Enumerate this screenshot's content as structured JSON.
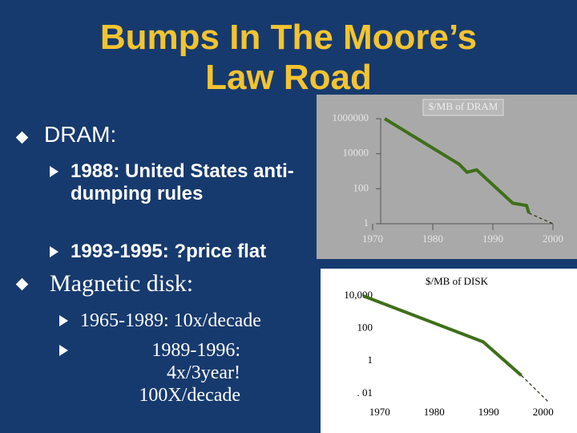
{
  "title": "Bumps In The Moore’s Law Road",
  "bullets": [
    {
      "text": "DRAM:",
      "items": [
        "1988: United States anti-dumping rules",
        "1993-1995: ?price flat"
      ]
    },
    {
      "text": "Magnetic disk:",
      "items": [
        "1965-1989: 10x/decade",
        "1989-1996: 4x/3year! 100X/decade"
      ]
    }
  ],
  "chart_data": [
    {
      "type": "line",
      "title": "$/MB of DRAM",
      "log_scale": true,
      "x": [
        1972,
        1984.4,
        1985.7,
        1987.3,
        1993.3,
        1995.6,
        1996,
        2000
      ],
      "series": [
        {
          "color": "#3f6f1a",
          "values": [
            1000000,
            2500,
            870,
            1200,
            15,
            11,
            4,
            null
          ]
        },
        {
          "color": "#2c3e1c",
          "dashed": true,
          "values": [
            null,
            null,
            null,
            null,
            null,
            null,
            4,
            1
          ]
        }
      ],
      "xlim": [
        1970,
        2000
      ],
      "xticks": [
        1970,
        1980,
        1990,
        2000
      ],
      "ylim": [
        1,
        1000000
      ],
      "yticks": [
        1,
        100,
        10000,
        1000000
      ]
    },
    {
      "type": "line",
      "title": "$/MB of DISK",
      "log_scale": true,
      "x": [
        1967,
        1989,
        1996,
        2001
      ],
      "series": [
        {
          "color": "#3f6f1a",
          "values": [
            10000,
            15,
            0.13,
            null
          ]
        },
        {
          "color": "#2c3e1c",
          "dashed": true,
          "values": [
            null,
            null,
            0.13,
            0.003
          ]
        }
      ],
      "xlim": [
        1966.5,
        2001.8
      ],
      "xticks": [
        1970,
        1980,
        1990,
        2000
      ],
      "ylim": [
        0.002,
        20000
      ],
      "yticks": [
        {
          "value": 0.01,
          "label": ". 01"
        },
        1,
        100,
        {
          "value": 10000,
          "label": "10,000"
        }
      ]
    }
  ]
}
